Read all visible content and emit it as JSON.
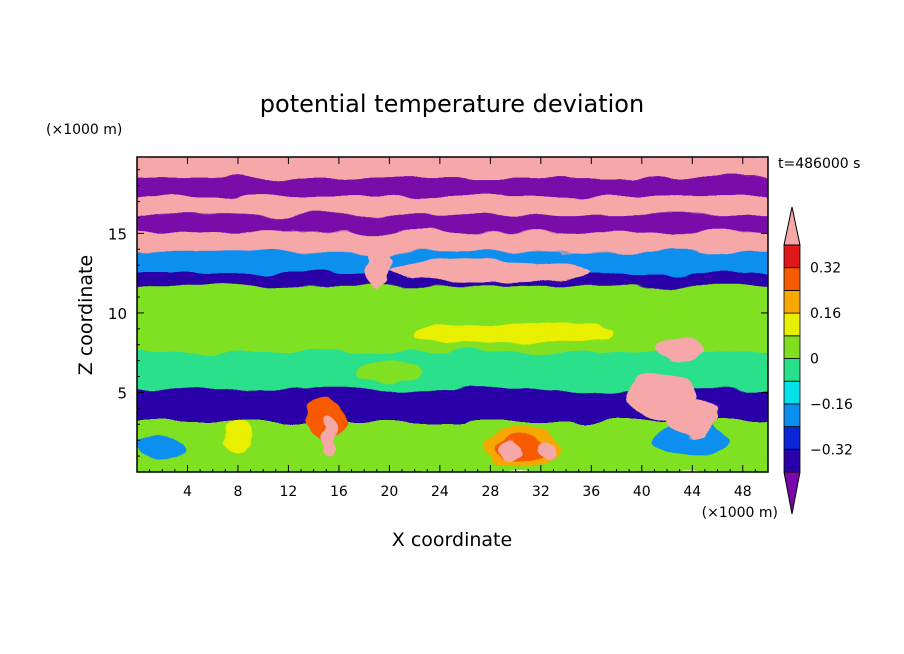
{
  "chart_data": {
    "type": "heatmap",
    "title": "potential temperature deviation",
    "xlabel": "X coordinate",
    "ylabel": "Z coordinate",
    "x_unit": "(×1000 m)",
    "y_unit": "(×1000 m)",
    "time_label": "t=486000 s",
    "xlim": [
      0,
      50
    ],
    "ylim": [
      0,
      19.8
    ],
    "x_ticks": [
      4,
      8,
      12,
      16,
      20,
      24,
      28,
      32,
      36,
      40,
      44,
      48
    ],
    "y_ticks": [
      5,
      10,
      15
    ],
    "colorbar": {
      "levels": [
        -0.4,
        -0.32,
        -0.24,
        -0.16,
        -0.08,
        0,
        0.08,
        0.16,
        0.24,
        0.32,
        0.4
      ],
      "tick_labels": [
        "0.32",
        "0.16",
        "0",
        "−0.16",
        "−0.32"
      ],
      "tick_values": [
        0.32,
        0.16,
        0,
        -0.16,
        -0.32
      ],
      "colors": [
        "#7a07aa",
        "#2a00a8",
        "#0a26d8",
        "#0a8ff0",
        "#00e1ea",
        "#29e08a",
        "#80e020",
        "#e8f000",
        "#f6a800",
        "#f85a00",
        "#e01818",
        "#f6a8a8"
      ],
      "extend": "both"
    },
    "layers": [
      {
        "z": [
          0,
          0.6
        ],
        "level": 0.04
      },
      {
        "z": [
          0.6,
          3.3
        ],
        "level": 0.02
      },
      {
        "z": [
          3.3,
          5.3
        ],
        "level": -0.36
      },
      {
        "z": [
          5.3,
          7.7
        ],
        "level": -0.06
      },
      {
        "z": [
          7.7,
          10.0
        ],
        "level": 0.0
      },
      {
        "z": [
          10.0,
          11.8
        ],
        "level": 0.02
      },
      {
        "z": [
          11.8,
          12.6
        ],
        "level": -0.36
      },
      {
        "z": [
          12.6,
          14.0
        ],
        "level": -0.22
      },
      {
        "z": [
          14.0,
          15.2
        ],
        "level": 0.42
      },
      {
        "z": [
          15.2,
          16.3
        ],
        "level": -0.42
      },
      {
        "z": [
          16.3,
          17.5
        ],
        "level": 0.42
      },
      {
        "z": [
          17.5,
          18.6
        ],
        "level": -0.42
      },
      {
        "z": [
          18.6,
          19.8
        ],
        "level": 0.42
      }
    ],
    "features": [
      {
        "shape": "blob",
        "center": [
          30.5,
          1.5
        ],
        "radius": [
          3.2,
          1.3
        ],
        "level": 0.2
      },
      {
        "shape": "blob",
        "center": [
          30.5,
          1.4
        ],
        "radius": [
          2.2,
          0.9
        ],
        "level": 0.3
      },
      {
        "shape": "blob",
        "center": [
          29.5,
          1.3
        ],
        "radius": [
          0.9,
          0.7
        ],
        "level": 0.42
      },
      {
        "shape": "blob",
        "center": [
          32.5,
          1.3
        ],
        "radius": [
          0.8,
          0.7
        ],
        "level": 0.42
      },
      {
        "shape": "blob",
        "center": [
          15.0,
          3.4
        ],
        "radius": [
          1.5,
          1.4
        ],
        "level": 0.24
      },
      {
        "shape": "blob",
        "center": [
          15.2,
          2.3
        ],
        "radius": [
          0.6,
          1.1
        ],
        "level": 0.42
      },
      {
        "shape": "blob",
        "center": [
          8.0,
          2.2
        ],
        "radius": [
          1.2,
          1.0
        ],
        "level": 0.12
      },
      {
        "shape": "blob",
        "center": [
          2.0,
          1.5
        ],
        "radius": [
          2.0,
          0.8
        ],
        "level": -0.2
      },
      {
        "shape": "blob",
        "center": [
          44.0,
          2.0
        ],
        "radius": [
          3.0,
          1.0
        ],
        "level": -0.2
      },
      {
        "shape": "blob",
        "center": [
          41.5,
          4.8
        ],
        "radius": [
          2.8,
          1.5
        ],
        "level": 0.42
      },
      {
        "shape": "blob",
        "center": [
          44.0,
          3.4
        ],
        "radius": [
          2.0,
          1.2
        ],
        "level": 0.42
      },
      {
        "shape": "blob",
        "center": [
          43.0,
          7.8
        ],
        "radius": [
          2.0,
          0.7
        ],
        "level": 0.42
      },
      {
        "shape": "blob",
        "center": [
          20.0,
          6.3
        ],
        "radius": [
          2.5,
          0.7
        ],
        "level": 0.04
      },
      {
        "shape": "blob",
        "center": [
          30.0,
          8.7
        ],
        "radius": [
          8.0,
          0.7
        ],
        "level": 0.08
      },
      {
        "shape": "blob",
        "center": [
          19.0,
          13.0
        ],
        "radius": [
          1.0,
          1.5
        ],
        "level": 0.42
      },
      {
        "shape": "blob",
        "center": [
          28.0,
          12.6
        ],
        "radius": [
          8.0,
          0.7
        ],
        "level": 0.42
      }
    ]
  }
}
